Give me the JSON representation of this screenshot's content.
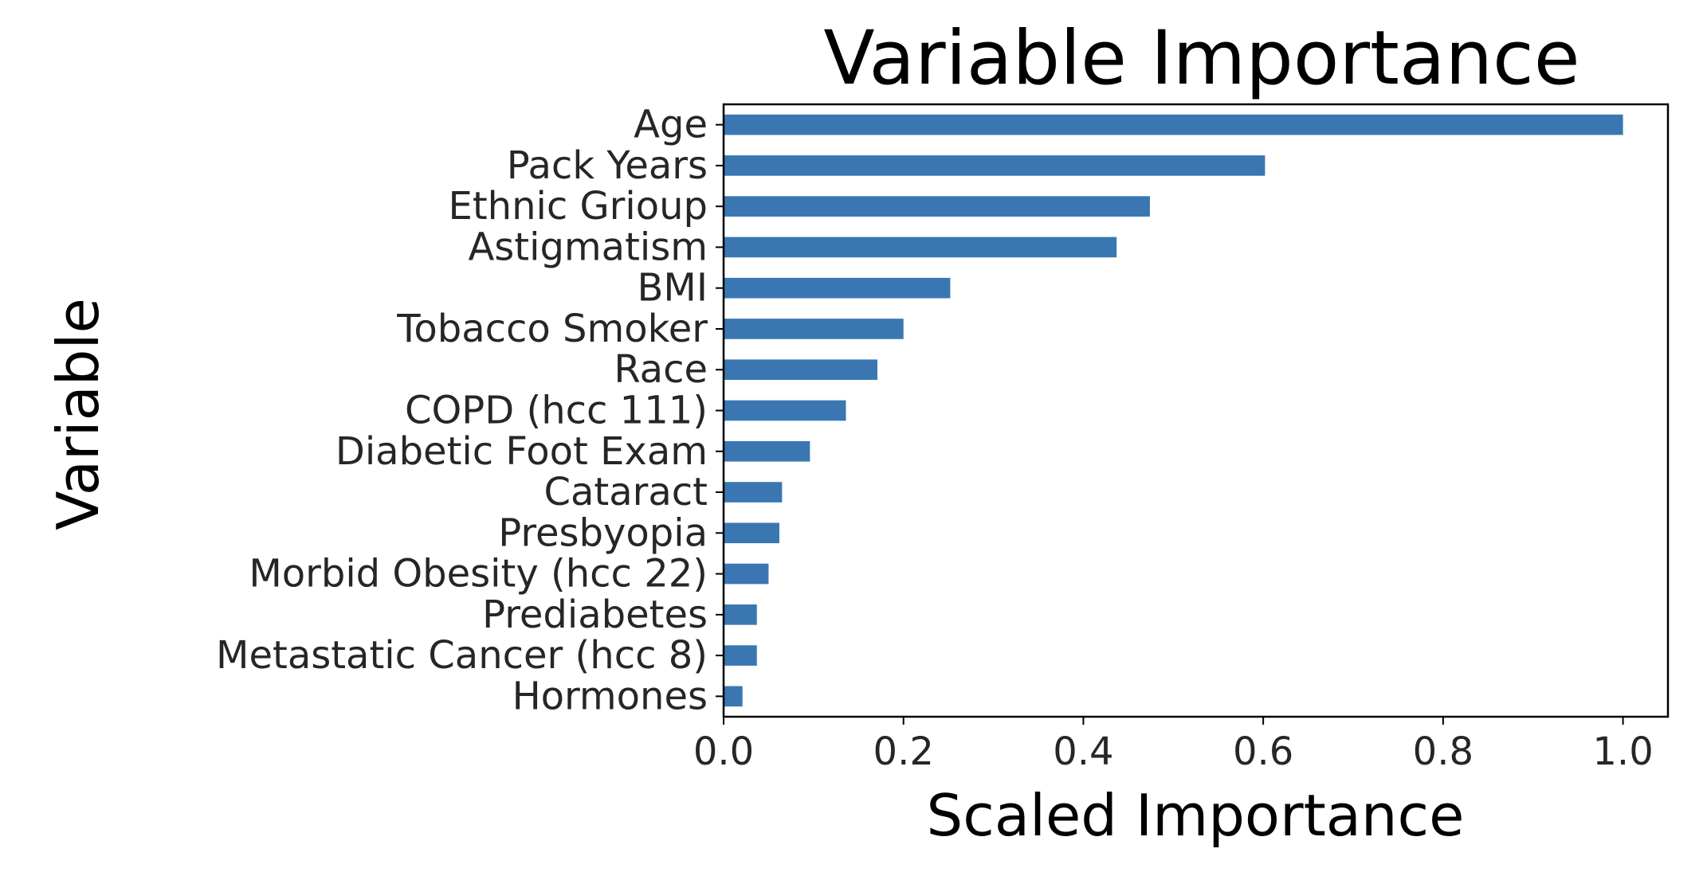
{
  "chart_data": {
    "type": "bar",
    "orientation": "horizontal",
    "title": "Variable Importance",
    "xlabel": "Scaled Importance",
    "ylabel": "Variable",
    "categories": [
      "Age",
      "Pack Years",
      "Ethnic Grioup",
      "Astigmatism",
      "BMI",
      "Tobacco Smoker",
      "Race",
      "COPD (hcc 111)",
      "Diabetic Foot Exam",
      "Cataract",
      "Presbyopia",
      "Morbid Obesity (hcc 22)",
      "Prediabetes",
      "Metastatic Cancer (hcc 8)",
      "Hormones"
    ],
    "values": [
      1.0,
      0.602,
      0.474,
      0.437,
      0.252,
      0.2,
      0.171,
      0.136,
      0.096,
      0.065,
      0.062,
      0.05,
      0.037,
      0.037,
      0.021
    ],
    "xlim": [
      0.0,
      1.05
    ],
    "xticks": [
      "0.0",
      "0.2",
      "0.4",
      "0.6",
      "0.8",
      "1.0"
    ],
    "bar_color": "#3a77b2",
    "grid": false,
    "legend": false
  }
}
